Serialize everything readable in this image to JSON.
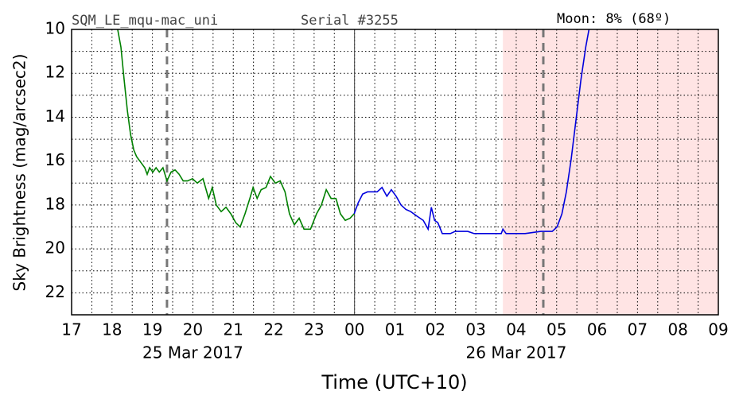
{
  "chart_data": {
    "type": "line",
    "header_left": "SQM_LE_mqu-mac_uni",
    "header_mid": "Serial #3255",
    "header_right": "Moon: 8% (68º)",
    "xlabel": "Time (UTC+10)",
    "ylabel": "Sky Brightness (mag/arcsec2)",
    "xlim": [
      17,
      33
    ],
    "ylim": [
      23,
      10
    ],
    "xticks": [
      17,
      18,
      19,
      20,
      21,
      22,
      23,
      {
        "value": 24,
        "label": "00"
      },
      {
        "value": 25,
        "label": "01"
      },
      {
        "value": 26,
        "label": "02"
      },
      {
        "value": 27,
        "label": "03"
      },
      {
        "value": 28,
        "label": "04"
      },
      {
        "value": 29,
        "label": "05"
      },
      {
        "value": 30,
        "label": "06"
      },
      {
        "value": 31,
        "label": "07"
      },
      {
        "value": 32,
        "label": "08"
      },
      {
        "value": 33,
        "label": "09"
      }
    ],
    "yticks": [
      10,
      12,
      14,
      16,
      18,
      20,
      22
    ],
    "xminorticks": [
      17.5,
      18.5,
      19.5,
      20.5,
      21.5,
      22.5,
      23.5,
      24.5,
      25.5,
      26.5,
      27.5,
      28.5,
      29.5,
      30.5,
      31.5,
      32.5
    ],
    "yminorticks": [
      11,
      13,
      15,
      17,
      19,
      21,
      23
    ],
    "grid": true,
    "date_labels": [
      {
        "text": "25 Mar 2017",
        "x": 20
      },
      {
        "text": "26 Mar 2017",
        "x": 28
      }
    ],
    "vlines": [
      {
        "x": 24,
        "color": "#444444",
        "dashed": false
      },
      {
        "x": 19.36,
        "color": "#777777",
        "dashed": true
      },
      {
        "x": 28.67,
        "color": "#777777",
        "dashed": true
      }
    ],
    "shade": {
      "x": [
        27.67,
        33
      ],
      "color": "#ffe4e4"
    },
    "series": [
      {
        "color": "#008000",
        "x": [
          18.14,
          18.22,
          18.3,
          18.38,
          18.46,
          18.54,
          18.61,
          18.73,
          18.81,
          18.87,
          18.93,
          19.01,
          19.09,
          19.17,
          19.26,
          19.36,
          19.46,
          19.56,
          19.66,
          19.76,
          19.87,
          19.99,
          20.11,
          20.25,
          20.39,
          20.48,
          20.58,
          20.7,
          20.82,
          20.94,
          21.06,
          21.17,
          21.29,
          21.41,
          21.49,
          21.59,
          21.69,
          21.81,
          21.92,
          22.04,
          22.16,
          22.28,
          22.39,
          22.51,
          22.63,
          22.75,
          22.91,
          23.06,
          23.18,
          23.3,
          23.42,
          23.54,
          23.65,
          23.77,
          23.89,
          23.99
        ],
        "values": [
          10.0,
          10.8,
          12.3,
          13.7,
          14.8,
          15.5,
          15.8,
          16.1,
          16.3,
          16.6,
          16.3,
          16.5,
          16.3,
          16.5,
          16.3,
          16.9,
          16.5,
          16.4,
          16.6,
          16.9,
          16.9,
          16.8,
          17.0,
          16.8,
          17.7,
          17.2,
          18.0,
          18.3,
          18.1,
          18.4,
          18.8,
          19.0,
          18.4,
          17.7,
          17.2,
          17.7,
          17.3,
          17.2,
          16.7,
          17.0,
          16.9,
          17.4,
          18.4,
          18.9,
          18.6,
          19.1,
          19.1,
          18.4,
          18.0,
          17.3,
          17.7,
          17.7,
          18.4,
          18.7,
          18.6,
          18.4
        ]
      },
      {
        "color": "#0000dd",
        "x": [
          23.99,
          24.09,
          24.2,
          24.32,
          24.44,
          24.56,
          24.68,
          24.8,
          24.91,
          25.03,
          25.15,
          25.27,
          25.39,
          25.54,
          25.7,
          25.82,
          25.9,
          25.98,
          26.06,
          26.17,
          26.37,
          26.49,
          26.65,
          26.8,
          26.96,
          27.28,
          27.63,
          27.67,
          27.75,
          28.22,
          28.61,
          28.89,
          29.01,
          29.13,
          29.24,
          29.36,
          29.48,
          29.6,
          29.72,
          29.8
        ],
        "values": [
          18.4,
          17.9,
          17.5,
          17.4,
          17.4,
          17.4,
          17.2,
          17.6,
          17.3,
          17.6,
          18.0,
          18.2,
          18.3,
          18.5,
          18.7,
          19.1,
          18.1,
          18.7,
          18.8,
          19.3,
          19.3,
          19.2,
          19.2,
          19.2,
          19.3,
          19.3,
          19.3,
          19.1,
          19.3,
          19.3,
          19.2,
          19.2,
          19.0,
          18.4,
          17.4,
          15.9,
          14.1,
          12.3,
          10.8,
          10.0
        ]
      }
    ]
  }
}
